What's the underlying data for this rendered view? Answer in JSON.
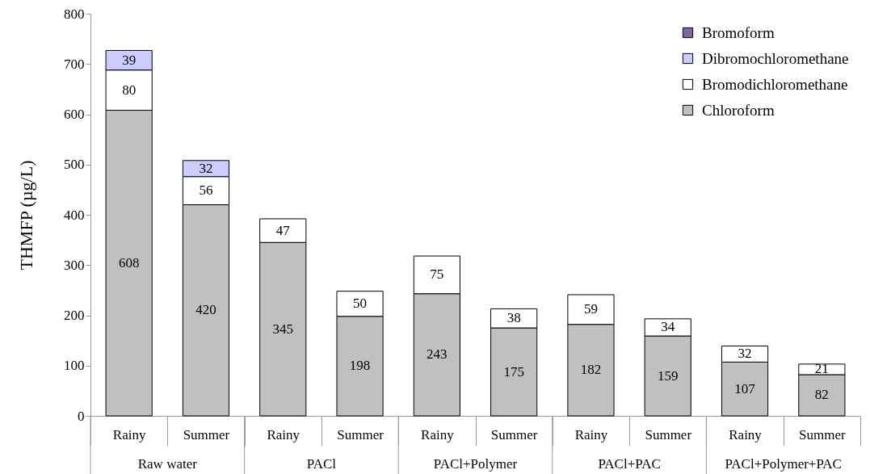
{
  "chart_data": {
    "type": "bar",
    "ylabel": "THMFP (µg/L)",
    "categories": [
      "Rainy",
      "Summer",
      "Rainy",
      "Summer",
      "Rainy",
      "Summer",
      "Rainy",
      "Summer",
      "Rainy",
      "Summer"
    ],
    "series": [
      {
        "name": "Chloroform",
        "color": "#c0c0c0",
        "values": [
          608,
          420,
          345,
          198,
          243,
          175,
          182,
          159,
          107,
          82
        ]
      },
      {
        "name": "Bromodichloromethane",
        "color": "#ffffff",
        "values": [
          80,
          56,
          47,
          50,
          75,
          38,
          59,
          34,
          32,
          21
        ]
      },
      {
        "name": "Dibromochloromethane",
        "color": "#ccccff",
        "values": [
          39,
          32,
          null,
          null,
          null,
          null,
          null,
          null,
          null,
          null
        ]
      },
      {
        "name": "Bromoform",
        "color": "#8064a2",
        "values": [
          null,
          null,
          null,
          null,
          null,
          null,
          null,
          null,
          null,
          null
        ]
      }
    ],
    "stacked": true,
    "data_labels": true,
    "ylim": [
      0,
      800
    ],
    "yticks": [
      0,
      100,
      200,
      300,
      400,
      500,
      600,
      700,
      800
    ],
    "legend": "top right",
    "annotations": [
      "Raw water",
      "PACl",
      "PACl+Polymer",
      "PACl+PAC",
      "PACl+Polymer+PAC"
    ]
  }
}
